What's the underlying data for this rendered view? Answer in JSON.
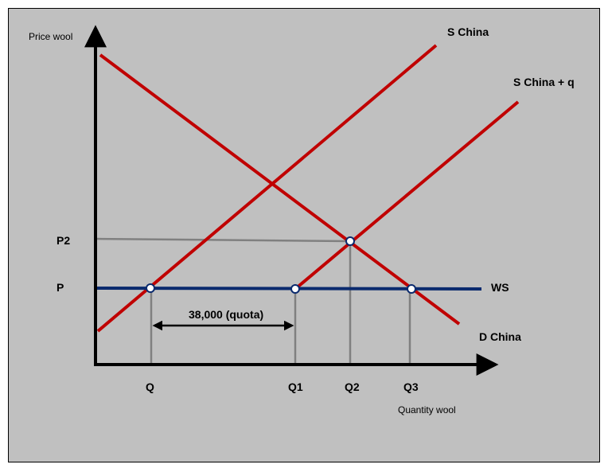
{
  "colors": {
    "background": "#c0c0c0",
    "supply_demand": "#c00000",
    "world_supply": "#0a2a6e",
    "guide": "#808080",
    "axis": "#000000"
  },
  "axes": {
    "y_label": "Price wool",
    "x_label": "Quantity wool"
  },
  "curves": {
    "s_china": "S China",
    "s_china_q": "S China + q",
    "d_china": "D China",
    "ws": "WS"
  },
  "price_ticks": {
    "p2": "P2",
    "p": "P"
  },
  "quantity_ticks": {
    "q": "Q",
    "q1": "Q1",
    "q2": "Q2",
    "q3": "Q3"
  },
  "quota_label": "38,000 (quota)"
}
